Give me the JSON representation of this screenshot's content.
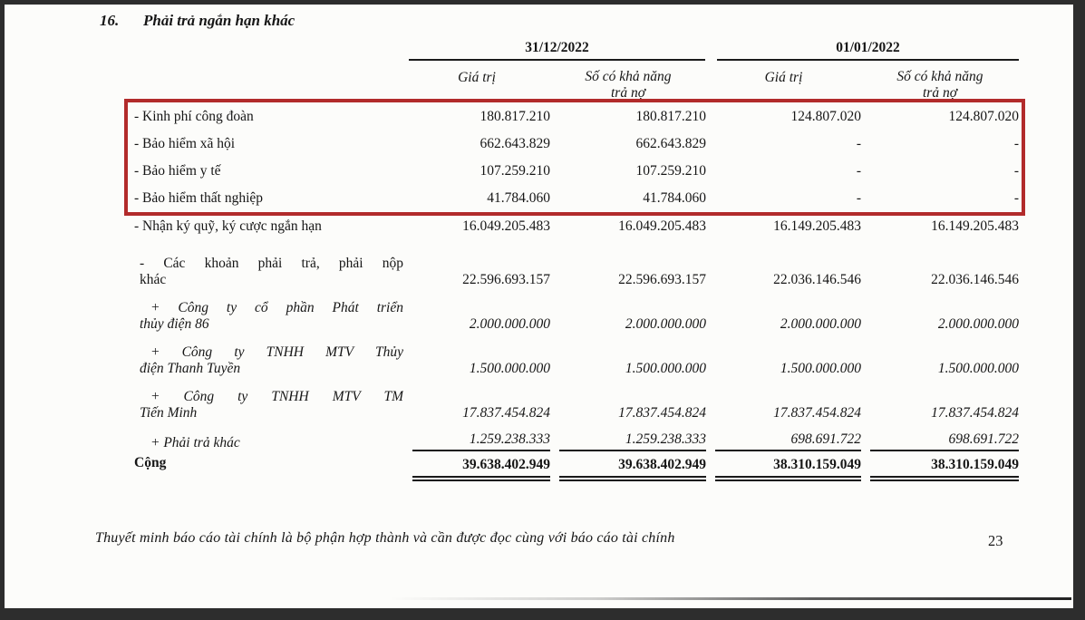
{
  "document": {
    "section_number": "16.",
    "section_title": "Phải trả ngắn hạn khác",
    "footer_note": "Thuyết minh báo cáo tài chính là bộ phận hợp thành và cần được đọc cùng với báo cáo tài chính",
    "page_number": "23"
  },
  "annotation": {
    "highlight_box_color": "#b22b2b"
  },
  "table": {
    "column_groups": [
      {
        "date": "31/12/2022",
        "subcolumns": [
          "Giá trị",
          "Số có khả năng trả nợ"
        ]
      },
      {
        "date": "01/01/2022",
        "subcolumns": [
          "Giá trị",
          "Số có khả năng trả nợ"
        ]
      }
    ],
    "rows": [
      {
        "label": "- Kinh phí công đoàn",
        "values": [
          "180.817.210",
          "180.817.210",
          "124.807.020",
          "124.807.020"
        ]
      },
      {
        "label": "- Bảo hiểm xã hội",
        "values": [
          "662.643.829",
          "662.643.829",
          "-",
          "-"
        ]
      },
      {
        "label": "- Bảo hiểm y tế",
        "values": [
          "107.259.210",
          "107.259.210",
          "-",
          "-"
        ]
      },
      {
        "label": "- Bảo hiểm thất nghiệp",
        "values": [
          "41.784.060",
          "41.784.060",
          "-",
          "-"
        ]
      },
      {
        "label": "- Nhận ký quỹ, ký cược ngắn hạn",
        "values": [
          "16.049.205.483",
          "16.049.205.483",
          "16.149.205.483",
          "16.149.205.483"
        ]
      },
      {
        "label_lines": [
          "- Các khoản phải trả, phải nộp",
          "khác"
        ],
        "values": [
          "22.596.693.157",
          "22.596.693.157",
          "22.036.146.546",
          "22.036.146.546"
        ]
      },
      {
        "label_lines": [
          "+ Công ty cổ phần Phát triển",
          "thủy điện 86"
        ],
        "values": [
          "2.000.000.000",
          "2.000.000.000",
          "2.000.000.000",
          "2.000.000.000"
        ]
      },
      {
        "label_lines": [
          "+ Công ty TNHH MTV Thủy",
          "điện Thanh Tuyền"
        ],
        "values": [
          "1.500.000.000",
          "1.500.000.000",
          "1.500.000.000",
          "1.500.000.000"
        ]
      },
      {
        "label_lines": [
          "+ Công ty TNHH MTV TM",
          "Tiến Minh"
        ],
        "values": [
          "17.837.454.824",
          "17.837.454.824",
          "17.837.454.824",
          "17.837.454.824"
        ]
      },
      {
        "label": "+ Phải trả khác",
        "values": [
          "1.259.238.333",
          "1.259.238.333",
          "698.691.722",
          "698.691.722"
        ]
      },
      {
        "label": "Cộng",
        "values": [
          "39.638.402.949",
          "39.638.402.949",
          "38.310.159.049",
          "38.310.159.049"
        ]
      }
    ]
  }
}
